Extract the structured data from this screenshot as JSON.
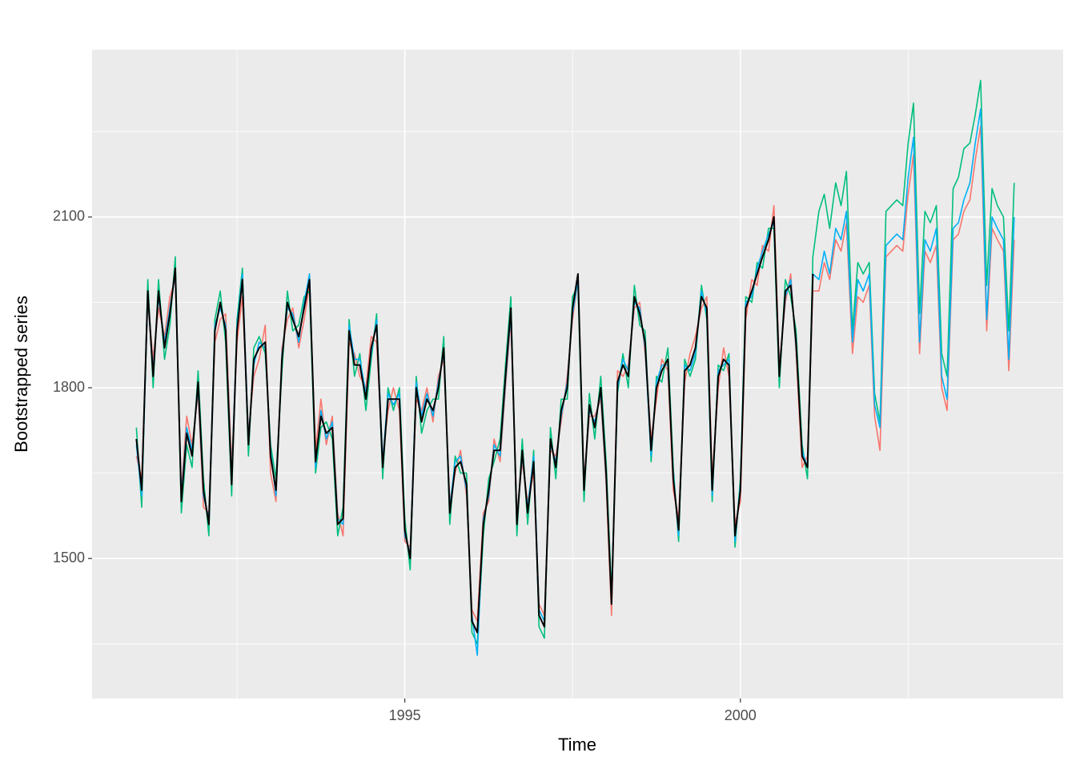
{
  "chart_data": {
    "type": "line",
    "x_label": "Time",
    "y_label": "Bootstrapped series",
    "xlim": [
      1990.34,
      2004.81
    ],
    "xticks": [
      1995,
      2000
    ],
    "ylim": [
      1254,
      2394
    ],
    "yticks": [
      1500,
      1800,
      2100
    ],
    "grid": true,
    "x": [
      1991.0,
      1991.08,
      1991.17,
      1991.25,
      1991.33,
      1991.42,
      1991.5,
      1991.58,
      1991.67,
      1991.75,
      1991.83,
      1991.92,
      1992.0,
      1992.08,
      1992.17,
      1992.25,
      1992.33,
      1992.42,
      1992.5,
      1992.58,
      1992.67,
      1992.75,
      1992.83,
      1992.92,
      1993.0,
      1993.08,
      1993.17,
      1993.25,
      1993.33,
      1993.42,
      1993.5,
      1993.58,
      1993.67,
      1993.75,
      1993.83,
      1993.92,
      1994.0,
      1994.08,
      1994.17,
      1994.25,
      1994.33,
      1994.42,
      1994.5,
      1994.58,
      1994.67,
      1994.75,
      1994.83,
      1994.92,
      1995.0,
      1995.08,
      1995.17,
      1995.25,
      1995.33,
      1995.42,
      1995.5,
      1995.58,
      1995.67,
      1995.75,
      1995.83,
      1995.92,
      1996.0,
      1996.08,
      1996.17,
      1996.25,
      1996.33,
      1996.42,
      1996.5,
      1996.58,
      1996.67,
      1996.75,
      1996.83,
      1996.92,
      1997.0,
      1997.08,
      1997.17,
      1997.25,
      1997.33,
      1997.42,
      1997.5,
      1997.58,
      1997.67,
      1997.75,
      1997.83,
      1997.92,
      1998.0,
      1998.08,
      1998.17,
      1998.25,
      1998.33,
      1998.42,
      1998.5,
      1998.58,
      1998.67,
      1998.75,
      1998.83,
      1998.92,
      1999.0,
      1999.08,
      1999.17,
      1999.25,
      1999.33,
      1999.42,
      1999.5,
      1999.58,
      1999.67,
      1999.75,
      1999.83,
      1999.92,
      2000.0,
      2000.08,
      2000.17,
      2000.25,
      2000.33,
      2000.42,
      2000.5,
      2000.58,
      2000.67,
      2000.75,
      2000.83,
      2000.92,
      2001.0,
      2001.08,
      2001.17,
      2001.25,
      2001.33,
      2001.42,
      2001.5,
      2001.58,
      2001.67,
      2001.75,
      2001.83,
      2001.92,
      2002.0,
      2002.08,
      2002.17,
      2002.25,
      2002.33,
      2002.42,
      2002.5,
      2002.58,
      2002.67,
      2002.75,
      2002.83,
      2002.92,
      2003.0,
      2003.08,
      2003.17,
      2003.25,
      2003.33,
      2003.42,
      2003.5,
      2003.58,
      2003.67,
      2003.75,
      2003.83,
      2003.92,
      2004.0,
      2004.08
    ],
    "series": [
      {
        "color": "#F8766D",
        "values": [
          1680,
          1640,
          1950,
          1850,
          1940,
          1890,
          1960,
          1990,
          1620,
          1750,
          1700,
          1790,
          1590,
          1580,
          1880,
          1920,
          1930,
          1660,
          1880,
          1960,
          1720,
          1820,
          1850,
          1910,
          1650,
          1600,
          1870,
          1920,
          1940,
          1870,
          1920,
          1980,
          1690,
          1780,
          1700,
          1750,
          1580,
          1540,
          1880,
          1860,
          1820,
          1800,
          1890,
          1880,
          1680,
          1760,
          1800,
          1760,
          1530,
          1520,
          1780,
          1760,
          1800,
          1740,
          1820,
          1850,
          1600,
          1650,
          1690,
          1610,
          1410,
          1390,
          1580,
          1600,
          1710,
          1670,
          1800,
          1920,
          1580,
          1670,
          1600,
          1650,
          1420,
          1400,
          1690,
          1680,
          1740,
          1820,
          1920,
          1990,
          1640,
          1750,
          1750,
          1780,
          1630,
          1400,
          1830,
          1820,
          1840,
          1940,
          1950,
          1860,
          1710,
          1780,
          1850,
          1830,
          1620,
          1570,
          1810,
          1860,
          1890,
          1940,
          1960,
          1640,
          1800,
          1870,
          1820,
          1560,
          1600,
          1920,
          1990,
          1980,
          2050,
          2040,
          2120,
          1840,
          1950,
          2000,
          1860,
          1660,
          1680,
          1970,
          1970,
          2020,
          1990,
          2060,
          2040,
          2090,
          1860,
          1960,
          1950,
          1980,
          1750,
          1690,
          2030,
          2040,
          2050,
          2040,
          2140,
          2210,
          1860,
          2040,
          2020,
          2050,
          1800,
          1760,
          2060,
          2070,
          2110,
          2130,
          2200,
          2260,
          1900,
          2080,
          2060,
          2040,
          1830,
          2060
        ]
      },
      {
        "color": "#00BF7D",
        "values": [
          1730,
          1590,
          1990,
          1800,
          1990,
          1850,
          1910,
          2030,
          1580,
          1700,
          1660,
          1830,
          1640,
          1540,
          1920,
          1970,
          1880,
          1610,
          1920,
          2010,
          1680,
          1870,
          1890,
          1860,
          1700,
          1640,
          1830,
          1970,
          1900,
          1910,
          1960,
          1970,
          1650,
          1730,
          1740,
          1710,
          1540,
          1590,
          1920,
          1820,
          1860,
          1760,
          1850,
          1930,
          1640,
          1800,
          1760,
          1800,
          1570,
          1480,
          1820,
          1720,
          1760,
          1780,
          1780,
          1890,
          1560,
          1680,
          1650,
          1650,
          1370,
          1350,
          1540,
          1640,
          1670,
          1710,
          1840,
          1960,
          1540,
          1710,
          1560,
          1690,
          1380,
          1360,
          1730,
          1640,
          1780,
          1780,
          1960,
          1980,
          1600,
          1790,
          1710,
          1820,
          1670,
          1440,
          1790,
          1860,
          1800,
          1980,
          1910,
          1900,
          1670,
          1820,
          1810,
          1870,
          1660,
          1530,
          1850,
          1820,
          1850,
          1980,
          1920,
          1600,
          1840,
          1830,
          1860,
          1520,
          1640,
          1960,
          1950,
          2020,
          2010,
          2080,
          2080,
          1800,
          1990,
          1960,
          1900,
          1700,
          1640,
          2030,
          2110,
          2140,
          2080,
          2160,
          2120,
          2180,
          1900,
          2020,
          2000,
          2020,
          1790,
          1740,
          2110,
          2120,
          2130,
          2120,
          2230,
          2300,
          1930,
          2110,
          2090,
          2120,
          1860,
          1820,
          2150,
          2170,
          2220,
          2230,
          2280,
          2340,
          1980,
          2150,
          2120,
          2100,
          1900,
          2160
        ]
      },
      {
        "color": "#00B0F6",
        "values": [
          1700,
          1610,
          1960,
          1830,
          1960,
          1880,
          1940,
          2000,
          1610,
          1730,
          1690,
          1800,
          1610,
          1570,
          1910,
          1940,
          1910,
          1640,
          1910,
          2000,
          1710,
          1840,
          1880,
          1870,
          1690,
          1610,
          1860,
          1940,
          1930,
          1880,
          1950,
          2000,
          1660,
          1760,
          1710,
          1740,
          1570,
          1560,
          1910,
          1850,
          1850,
          1790,
          1860,
          1920,
          1670,
          1790,
          1770,
          1790,
          1540,
          1510,
          1810,
          1750,
          1790,
          1750,
          1810,
          1860,
          1590,
          1670,
          1680,
          1620,
          1400,
          1330,
          1570,
          1610,
          1700,
          1680,
          1810,
          1930,
          1570,
          1680,
          1590,
          1680,
          1410,
          1390,
          1700,
          1670,
          1750,
          1810,
          1930,
          1990,
          1630,
          1760,
          1740,
          1790,
          1640,
          1430,
          1800,
          1850,
          1830,
          1950,
          1940,
          1870,
          1680,
          1810,
          1840,
          1840,
          1650,
          1540,
          1840,
          1830,
          1860,
          1970,
          1930,
          1610,
          1830,
          1840,
          1850,
          1530,
          1630,
          1950,
          1960,
          2010,
          2040,
          2070,
          2090,
          1830,
          1960,
          1990,
          1870,
          1690,
          1660,
          2000,
          1990,
          2040,
          2000,
          2080,
          2060,
          2110,
          1880,
          1990,
          1970,
          2000,
          1770,
          1730,
          2050,
          2060,
          2070,
          2060,
          2170,
          2240,
          1880,
          2060,
          2040,
          2080,
          1820,
          1780,
          2080,
          2090,
          2130,
          2160,
          2230,
          2290,
          1920,
          2100,
          2080,
          2060,
          1850,
          2100
        ]
      },
      {
        "color": "#000000",
        "values": [
          1710,
          1620,
          1970,
          1820,
          1970,
          1870,
          1930,
          2010,
          1600,
          1720,
          1680,
          1810,
          1620,
          1560,
          1900,
          1950,
          1900,
          1630,
          1900,
          1990,
          1700,
          1850,
          1870,
          1880,
          1680,
          1620,
          1850,
          1950,
          1920,
          1890,
          1940,
          1990,
          1670,
          1750,
          1720,
          1730,
          1560,
          1570,
          1900,
          1840,
          1840,
          1780,
          1870,
          1910,
          1660,
          1780,
          1780,
          1780,
          1550,
          1500,
          1800,
          1740,
          1780,
          1760,
          1800,
          1870,
          1580,
          1660,
          1670,
          1630,
          1390,
          1370,
          1560,
          1620,
          1690,
          1690,
          1820,
          1940,
          1560,
          1690,
          1580,
          1670,
          1400,
          1380,
          1710,
          1660,
          1760,
          1800,
          1940,
          2000,
          1620,
          1770,
          1730,
          1800,
          1650,
          1420,
          1810,
          1840,
          1820,
          1960,
          1930,
          1880,
          1690,
          1800,
          1830,
          1850,
          1640,
          1550,
          1830,
          1840,
          1870,
          1960,
          1940,
          1620,
          1820,
          1850,
          1840,
          1540,
          1620,
          1940,
          1970,
          2000,
          2030,
          2060,
          2100,
          1820,
          1970,
          1980,
          1880,
          1680,
          1660,
          2000,
          null,
          null,
          null,
          null,
          null,
          null,
          null,
          null,
          null,
          null,
          null,
          null,
          null,
          null,
          null,
          null,
          null,
          null,
          null,
          null,
          null,
          null,
          null,
          null,
          null,
          null,
          null,
          null,
          null,
          null,
          null,
          null,
          null,
          null,
          null,
          null
        ]
      }
    ]
  }
}
